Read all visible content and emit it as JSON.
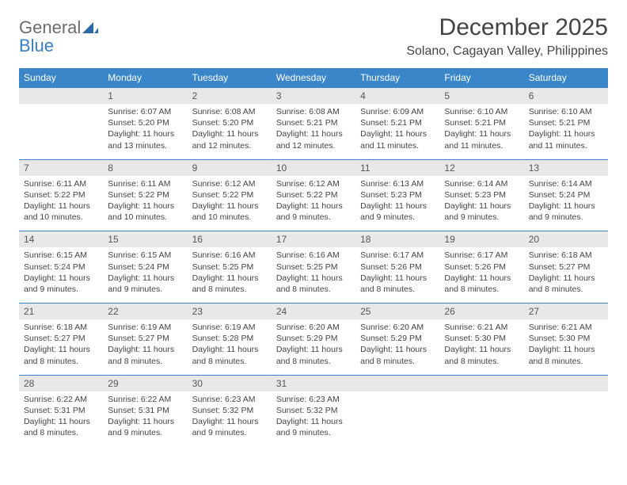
{
  "logo": {
    "text1": "General",
    "text2": "Blue"
  },
  "title": "December 2025",
  "subtitle": "Solano, Cagayan Valley, Philippines",
  "colors": {
    "header_bg": "#3a86c8",
    "header_fg": "#ffffff",
    "daynum_bg": "#e8e8e8",
    "rule": "#3a86c8",
    "text": "#444444",
    "logo_gray": "#6b6b6b",
    "logo_blue": "#3a7fc4"
  },
  "day_names": [
    "Sunday",
    "Monday",
    "Tuesday",
    "Wednesday",
    "Thursday",
    "Friday",
    "Saturday"
  ],
  "first_weekday_index": 1,
  "days": [
    {
      "n": 1,
      "sunrise": "6:07 AM",
      "sunset": "5:20 PM",
      "daylight": "11 hours and 13 minutes."
    },
    {
      "n": 2,
      "sunrise": "6:08 AM",
      "sunset": "5:20 PM",
      "daylight": "11 hours and 12 minutes."
    },
    {
      "n": 3,
      "sunrise": "6:08 AM",
      "sunset": "5:21 PM",
      "daylight": "11 hours and 12 minutes."
    },
    {
      "n": 4,
      "sunrise": "6:09 AM",
      "sunset": "5:21 PM",
      "daylight": "11 hours and 11 minutes."
    },
    {
      "n": 5,
      "sunrise": "6:10 AM",
      "sunset": "5:21 PM",
      "daylight": "11 hours and 11 minutes."
    },
    {
      "n": 6,
      "sunrise": "6:10 AM",
      "sunset": "5:21 PM",
      "daylight": "11 hours and 11 minutes."
    },
    {
      "n": 7,
      "sunrise": "6:11 AM",
      "sunset": "5:22 PM",
      "daylight": "11 hours and 10 minutes."
    },
    {
      "n": 8,
      "sunrise": "6:11 AM",
      "sunset": "5:22 PM",
      "daylight": "11 hours and 10 minutes."
    },
    {
      "n": 9,
      "sunrise": "6:12 AM",
      "sunset": "5:22 PM",
      "daylight": "11 hours and 10 minutes."
    },
    {
      "n": 10,
      "sunrise": "6:12 AM",
      "sunset": "5:22 PM",
      "daylight": "11 hours and 9 minutes."
    },
    {
      "n": 11,
      "sunrise": "6:13 AM",
      "sunset": "5:23 PM",
      "daylight": "11 hours and 9 minutes."
    },
    {
      "n": 12,
      "sunrise": "6:14 AM",
      "sunset": "5:23 PM",
      "daylight": "11 hours and 9 minutes."
    },
    {
      "n": 13,
      "sunrise": "6:14 AM",
      "sunset": "5:24 PM",
      "daylight": "11 hours and 9 minutes."
    },
    {
      "n": 14,
      "sunrise": "6:15 AM",
      "sunset": "5:24 PM",
      "daylight": "11 hours and 9 minutes."
    },
    {
      "n": 15,
      "sunrise": "6:15 AM",
      "sunset": "5:24 PM",
      "daylight": "11 hours and 9 minutes."
    },
    {
      "n": 16,
      "sunrise": "6:16 AM",
      "sunset": "5:25 PM",
      "daylight": "11 hours and 8 minutes."
    },
    {
      "n": 17,
      "sunrise": "6:16 AM",
      "sunset": "5:25 PM",
      "daylight": "11 hours and 8 minutes."
    },
    {
      "n": 18,
      "sunrise": "6:17 AM",
      "sunset": "5:26 PM",
      "daylight": "11 hours and 8 minutes."
    },
    {
      "n": 19,
      "sunrise": "6:17 AM",
      "sunset": "5:26 PM",
      "daylight": "11 hours and 8 minutes."
    },
    {
      "n": 20,
      "sunrise": "6:18 AM",
      "sunset": "5:27 PM",
      "daylight": "11 hours and 8 minutes."
    },
    {
      "n": 21,
      "sunrise": "6:18 AM",
      "sunset": "5:27 PM",
      "daylight": "11 hours and 8 minutes."
    },
    {
      "n": 22,
      "sunrise": "6:19 AM",
      "sunset": "5:27 PM",
      "daylight": "11 hours and 8 minutes."
    },
    {
      "n": 23,
      "sunrise": "6:19 AM",
      "sunset": "5:28 PM",
      "daylight": "11 hours and 8 minutes."
    },
    {
      "n": 24,
      "sunrise": "6:20 AM",
      "sunset": "5:29 PM",
      "daylight": "11 hours and 8 minutes."
    },
    {
      "n": 25,
      "sunrise": "6:20 AM",
      "sunset": "5:29 PM",
      "daylight": "11 hours and 8 minutes."
    },
    {
      "n": 26,
      "sunrise": "6:21 AM",
      "sunset": "5:30 PM",
      "daylight": "11 hours and 8 minutes."
    },
    {
      "n": 27,
      "sunrise": "6:21 AM",
      "sunset": "5:30 PM",
      "daylight": "11 hours and 8 minutes."
    },
    {
      "n": 28,
      "sunrise": "6:22 AM",
      "sunset": "5:31 PM",
      "daylight": "11 hours and 8 minutes."
    },
    {
      "n": 29,
      "sunrise": "6:22 AM",
      "sunset": "5:31 PM",
      "daylight": "11 hours and 9 minutes."
    },
    {
      "n": 30,
      "sunrise": "6:23 AM",
      "sunset": "5:32 PM",
      "daylight": "11 hours and 9 minutes."
    },
    {
      "n": 31,
      "sunrise": "6:23 AM",
      "sunset": "5:32 PM",
      "daylight": "11 hours and 9 minutes."
    }
  ],
  "labels": {
    "sunrise": "Sunrise:",
    "sunset": "Sunset:",
    "daylight": "Daylight:"
  }
}
